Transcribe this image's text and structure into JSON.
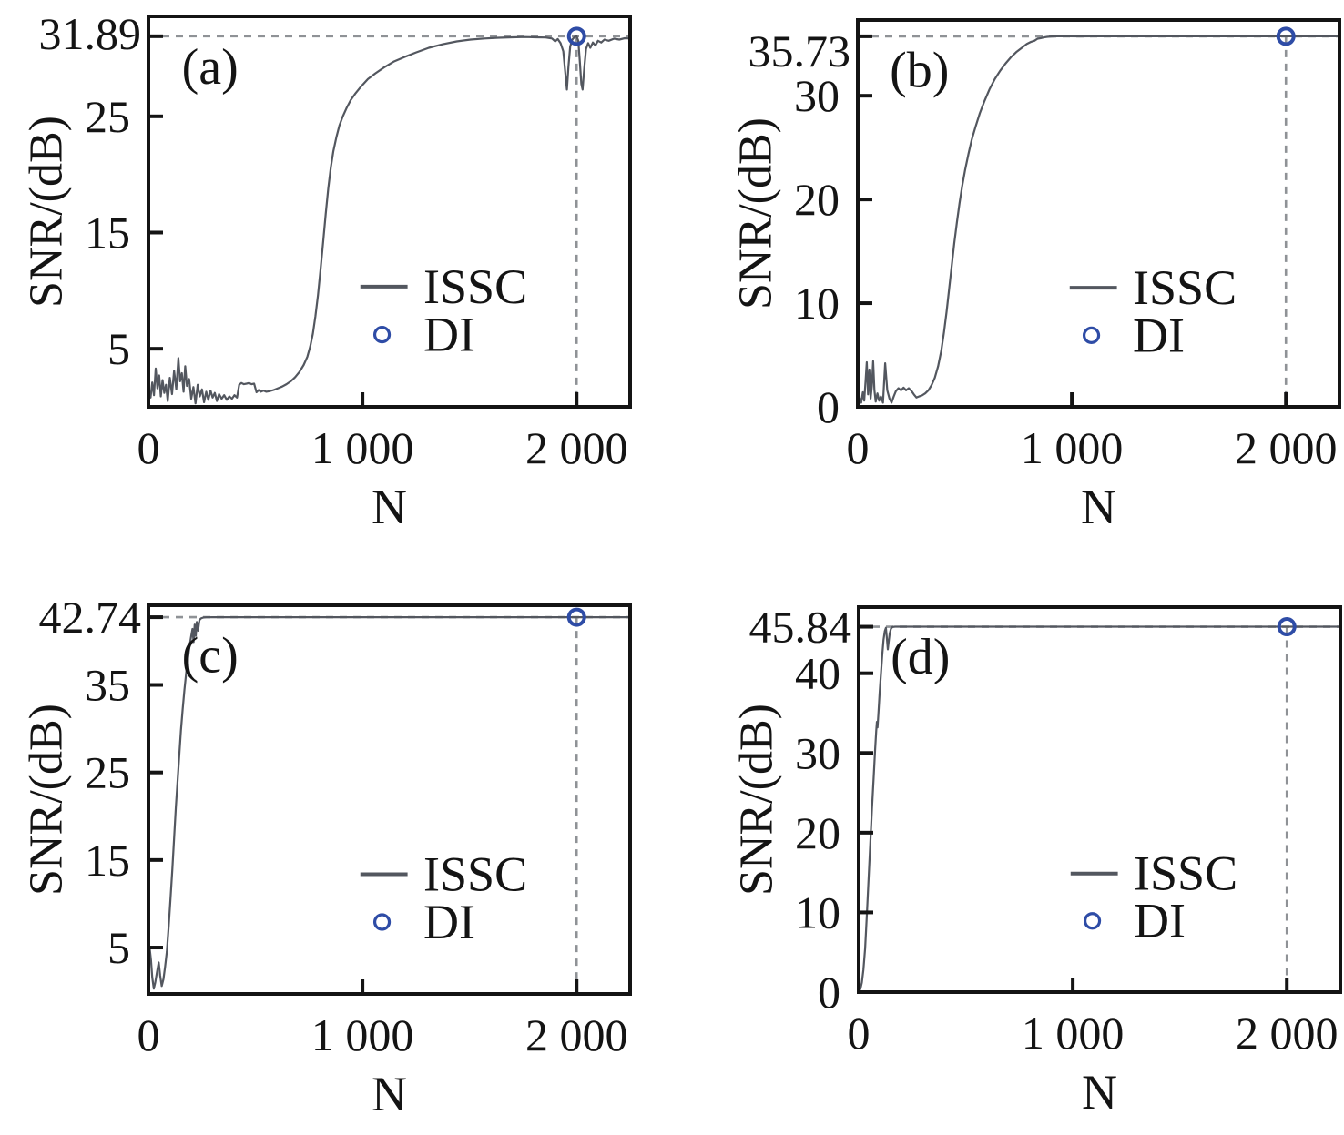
{
  "figure": {
    "title": "",
    "colors": {
      "background": "#ffffff",
      "curve": "#53575f",
      "di_marker": "#2e4ca6",
      "dashed_line": "#8f9296",
      "axis": "#141414",
      "text": "#141414"
    },
    "legend": {
      "line_label": "ISSC",
      "marker_label": "DI"
    },
    "xlabel": "N",
    "ylabel": "SNR/(dB)"
  },
  "chart_data": [
    {
      "type": "line",
      "panel_label": "(a)",
      "xlabel": "N",
      "ylabel": "SNR/(dB)",
      "xlim": [
        0,
        2250
      ],
      "ylim": [
        0,
        33.6
      ],
      "x_ticks": [
        {
          "v": 0,
          "label": "0"
        },
        {
          "v": 1000,
          "label": "1 000"
        },
        {
          "v": 2000,
          "label": "2 000"
        }
      ],
      "y_ticks": [
        {
          "v": 5,
          "label": "5"
        },
        {
          "v": 15,
          "label": "15"
        },
        {
          "v": 25,
          "label": "25"
        }
      ],
      "max_annotation": "31.89",
      "max_value": 31.89,
      "annotation_dy": -3,
      "dashed_x": 2000,
      "legend": [
        "ISSC",
        "DI"
      ],
      "di_point": [
        2000,
        31.89
      ],
      "issc_points": [
        [
          0,
          1.4
        ],
        [
          10,
          0.8
        ],
        [
          18,
          2.1
        ],
        [
          26,
          1.0
        ],
        [
          34,
          3.3
        ],
        [
          42,
          1.6
        ],
        [
          50,
          2.7
        ],
        [
          58,
          0.9
        ],
        [
          66,
          2.3
        ],
        [
          74,
          1.2
        ],
        [
          82,
          1.9
        ],
        [
          90,
          0.5
        ],
        [
          100,
          2.5
        ],
        [
          110,
          1.1
        ],
        [
          120,
          3.1
        ],
        [
          130,
          1.5
        ],
        [
          140,
          4.2
        ],
        [
          148,
          2.2
        ],
        [
          156,
          2.9
        ],
        [
          164,
          1.3
        ],
        [
          172,
          3.5
        ],
        [
          180,
          1.8
        ],
        [
          190,
          2.4
        ],
        [
          200,
          0.7
        ],
        [
          210,
          1.7
        ],
        [
          220,
          0.3
        ],
        [
          230,
          1.9
        ],
        [
          240,
          0.9
        ],
        [
          250,
          1.5
        ],
        [
          260,
          0.4
        ],
        [
          270,
          1.3
        ],
        [
          280,
          0.6
        ],
        [
          290,
          1.4
        ],
        [
          300,
          0.8
        ],
        [
          310,
          1.2
        ],
        [
          320,
          0.5
        ],
        [
          330,
          1.1
        ],
        [
          342,
          0.7
        ],
        [
          354,
          1.0
        ],
        [
          366,
          0.6
        ],
        [
          378,
          0.9
        ],
        [
          390,
          0.7
        ],
        [
          402,
          1.0
        ],
        [
          414,
          0.8
        ],
        [
          424,
          1.9
        ],
        [
          434,
          2.05
        ],
        [
          446,
          1.95
        ],
        [
          458,
          2.0
        ],
        [
          470,
          2.05
        ],
        [
          482,
          1.95
        ],
        [
          494,
          2.0
        ],
        [
          505,
          1.25
        ],
        [
          515,
          1.45
        ],
        [
          525,
          1.3
        ],
        [
          538,
          1.4
        ],
        [
          550,
          1.3
        ],
        [
          565,
          1.35
        ],
        [
          585,
          1.45
        ],
        [
          605,
          1.6
        ],
        [
          625,
          1.75
        ],
        [
          645,
          1.95
        ],
        [
          665,
          2.2
        ],
        [
          685,
          2.55
        ],
        [
          705,
          3.0
        ],
        [
          725,
          3.6
        ],
        [
          742,
          4.3
        ],
        [
          756,
          5.2
        ],
        [
          768,
          6.3
        ],
        [
          780,
          7.8
        ],
        [
          792,
          9.6
        ],
        [
          804,
          11.8
        ],
        [
          816,
          14.2
        ],
        [
          828,
          16.6
        ],
        [
          840,
          18.8
        ],
        [
          852,
          20.6
        ],
        [
          864,
          22.0
        ],
        [
          878,
          23.2
        ],
        [
          892,
          24.2
        ],
        [
          908,
          25.0
        ],
        [
          925,
          25.7
        ],
        [
          945,
          26.4
        ],
        [
          968,
          27.0
        ],
        [
          995,
          27.6
        ],
        [
          1025,
          28.2
        ],
        [
          1060,
          28.7
        ],
        [
          1100,
          29.2
        ],
        [
          1145,
          29.7
        ],
        [
          1195,
          30.1
        ],
        [
          1250,
          30.5
        ],
        [
          1310,
          30.9
        ],
        [
          1375,
          31.2
        ],
        [
          1440,
          31.45
        ],
        [
          1505,
          31.6
        ],
        [
          1570,
          31.7
        ],
        [
          1635,
          31.76
        ],
        [
          1700,
          31.8
        ],
        [
          1760,
          31.82
        ],
        [
          1810,
          31.8
        ],
        [
          1855,
          31.78
        ],
        [
          1885,
          31.7
        ],
        [
          1900,
          31.45
        ],
        [
          1912,
          31.65
        ],
        [
          1925,
          31.3
        ],
        [
          1938,
          30.6
        ],
        [
          1948,
          28.6
        ],
        [
          1955,
          27.3
        ],
        [
          1962,
          29.3
        ],
        [
          1970,
          31.0
        ],
        [
          1980,
          31.6
        ],
        [
          1990,
          31.82
        ],
        [
          2000,
          31.89
        ],
        [
          2008,
          31.5
        ],
        [
          2015,
          29.8
        ],
        [
          2022,
          27.8
        ],
        [
          2028,
          27.3
        ],
        [
          2036,
          29.2
        ],
        [
          2044,
          30.8
        ],
        [
          2054,
          31.3
        ],
        [
          2064,
          30.9
        ],
        [
          2076,
          31.35
        ],
        [
          2088,
          31.1
        ],
        [
          2100,
          31.5
        ],
        [
          2115,
          31.35
        ],
        [
          2130,
          31.6
        ],
        [
          2150,
          31.5
        ],
        [
          2175,
          31.68
        ],
        [
          2200,
          31.6
        ],
        [
          2225,
          31.72
        ],
        [
          2250,
          31.7
        ]
      ]
    },
    {
      "type": "line",
      "panel_label": "(b)",
      "xlabel": "N",
      "ylabel": "SNR/(dB)",
      "xlim": [
        0,
        2250
      ],
      "ylim": [
        0,
        37.3
      ],
      "x_ticks": [
        {
          "v": 0,
          "label": "0"
        },
        {
          "v": 1000,
          "label": "1 000"
        },
        {
          "v": 2000,
          "label": "2 000"
        }
      ],
      "y_ticks": [
        {
          "v": 0,
          "label": "0"
        },
        {
          "v": 10,
          "label": "10"
        },
        {
          "v": 20,
          "label": "20"
        },
        {
          "v": 30,
          "label": "30"
        }
      ],
      "max_annotation": "35.73",
      "max_value": 35.73,
      "annotation_dy": 16,
      "dashed_x": 2000,
      "legend": [
        "ISSC",
        "DI"
      ],
      "di_point": [
        2000,
        35.73
      ],
      "issc_points": [
        [
          0,
          0.3
        ],
        [
          8,
          0.9
        ],
        [
          16,
          0.4
        ],
        [
          24,
          1.4
        ],
        [
          30,
          0.6
        ],
        [
          36,
          2.4
        ],
        [
          42,
          4.3
        ],
        [
          48,
          1.2
        ],
        [
          54,
          3.6
        ],
        [
          60,
          0.8
        ],
        [
          66,
          2.0
        ],
        [
          72,
          4.4
        ],
        [
          78,
          1.6
        ],
        [
          84,
          0.5
        ],
        [
          92,
          1.3
        ],
        [
          100,
          0.6
        ],
        [
          108,
          1.0
        ],
        [
          118,
          0.4
        ],
        [
          128,
          4.2
        ],
        [
          138,
          1.6
        ],
        [
          148,
          0.8
        ],
        [
          158,
          0.4
        ],
        [
          168,
          1.0
        ],
        [
          178,
          1.5
        ],
        [
          190,
          1.8
        ],
        [
          202,
          1.6
        ],
        [
          214,
          1.85
        ],
        [
          226,
          1.6
        ],
        [
          238,
          1.8
        ],
        [
          250,
          1.55
        ],
        [
          262,
          1.2
        ],
        [
          274,
          0.9
        ],
        [
          286,
          1.0
        ],
        [
          300,
          1.1
        ],
        [
          315,
          1.3
        ],
        [
          330,
          1.6
        ],
        [
          345,
          2.1
        ],
        [
          360,
          2.8
        ],
        [
          375,
          3.9
        ],
        [
          390,
          5.4
        ],
        [
          403,
          7.2
        ],
        [
          415,
          9.2
        ],
        [
          427,
          11.4
        ],
        [
          439,
          13.6
        ],
        [
          451,
          15.8
        ],
        [
          463,
          17.8
        ],
        [
          475,
          19.6
        ],
        [
          488,
          21.3
        ],
        [
          502,
          22.9
        ],
        [
          517,
          24.4
        ],
        [
          533,
          25.8
        ],
        [
          550,
          27.0
        ],
        [
          570,
          28.3
        ],
        [
          592,
          29.5
        ],
        [
          615,
          30.6
        ],
        [
          640,
          31.6
        ],
        [
          665,
          32.4
        ],
        [
          690,
          33.1
        ],
        [
          715,
          33.7
        ],
        [
          740,
          34.2
        ],
        [
          765,
          34.6
        ],
        [
          790,
          35.0
        ],
        [
          810,
          35.2
        ],
        [
          825,
          35.3
        ],
        [
          840,
          35.5
        ],
        [
          855,
          35.55
        ],
        [
          870,
          35.62
        ],
        [
          885,
          35.68
        ],
        [
          905,
          35.71
        ],
        [
          930,
          35.73
        ],
        [
          980,
          35.73
        ],
        [
          1040,
          35.72
        ],
        [
          1100,
          35.73
        ],
        [
          1300,
          35.73
        ],
        [
          1600,
          35.73
        ],
        [
          1900,
          35.73
        ],
        [
          2250,
          35.73
        ]
      ]
    },
    {
      "type": "line",
      "panel_label": "(c)",
      "xlabel": "N",
      "ylabel": "SNR/(dB)",
      "xlim": [
        0,
        2250
      ],
      "ylim": [
        -0.3,
        44.1
      ],
      "x_ticks": [
        {
          "v": 0,
          "label": "0"
        },
        {
          "v": 1000,
          "label": "1 000"
        },
        {
          "v": 2000,
          "label": "2 000"
        }
      ],
      "y_ticks": [
        {
          "v": 5,
          "label": "5"
        },
        {
          "v": 15,
          "label": "15"
        },
        {
          "v": 25,
          "label": "25"
        },
        {
          "v": 35,
          "label": "35"
        }
      ],
      "max_annotation": "42.74",
      "max_value": 42.74,
      "annotation_dy": 0,
      "dashed_x": 2000,
      "legend": [
        "ISSC",
        "DI"
      ],
      "di_point": [
        2000,
        42.74
      ],
      "issc_points": [
        [
          0,
          3.2
        ],
        [
          6,
          4.9
        ],
        [
          12,
          3.6
        ],
        [
          18,
          1.6
        ],
        [
          25,
          0.3
        ],
        [
          32,
          1.0
        ],
        [
          40,
          2.2
        ],
        [
          48,
          3.3
        ],
        [
          55,
          1.8
        ],
        [
          62,
          0.6
        ],
        [
          70,
          1.4
        ],
        [
          78,
          2.8
        ],
        [
          86,
          4.5
        ],
        [
          95,
          7.5
        ],
        [
          103,
          10.5
        ],
        [
          112,
          14.0
        ],
        [
          120,
          17.5
        ],
        [
          128,
          21.0
        ],
        [
          136,
          24.0
        ],
        [
          144,
          27.0
        ],
        [
          152,
          29.8
        ],
        [
          160,
          32.2
        ],
        [
          168,
          34.4
        ],
        [
          176,
          36.3
        ],
        [
          184,
          38.0
        ],
        [
          192,
          39.4
        ],
        [
          200,
          40.6
        ],
        [
          206,
          41.4
        ],
        [
          211,
          39.9
        ],
        [
          216,
          41.9
        ],
        [
          221,
          40.6
        ],
        [
          226,
          42.2
        ],
        [
          232,
          41.2
        ],
        [
          238,
          42.4
        ],
        [
          246,
          42.6
        ],
        [
          256,
          42.7
        ],
        [
          270,
          42.73
        ],
        [
          300,
          42.74
        ],
        [
          500,
          42.74
        ],
        [
          1000,
          42.74
        ],
        [
          1500,
          42.74
        ],
        [
          2000,
          42.74
        ],
        [
          2250,
          42.74
        ]
      ]
    },
    {
      "type": "line",
      "panel_label": "(d)",
      "xlabel": "N",
      "ylabel": "SNR/(dB)",
      "xlim": [
        0,
        2250
      ],
      "ylim": [
        0,
        48.3
      ],
      "x_ticks": [
        {
          "v": 0,
          "label": "0"
        },
        {
          "v": 1000,
          "label": "1 000"
        },
        {
          "v": 2000,
          "label": "2 000"
        }
      ],
      "y_ticks": [
        {
          "v": 0,
          "label": "0"
        },
        {
          "v": 10,
          "label": "10"
        },
        {
          "v": 20,
          "label": "20"
        },
        {
          "v": 30,
          "label": "30"
        },
        {
          "v": 40,
          "label": "40"
        }
      ],
      "max_annotation": "45.84",
      "max_value": 45.84,
      "annotation_dy": 0,
      "dashed_x": 2000,
      "legend": [
        "ISSC",
        "DI"
      ],
      "di_point": [
        2000,
        45.84
      ],
      "issc_points": [
        [
          0,
          0.1
        ],
        [
          8,
          0.4
        ],
        [
          15,
          1.2
        ],
        [
          22,
          2.8
        ],
        [
          30,
          5.5
        ],
        [
          38,
          9.5
        ],
        [
          46,
          14.0
        ],
        [
          54,
          18.5
        ],
        [
          62,
          23.0
        ],
        [
          70,
          27.0
        ],
        [
          77,
          30.5
        ],
        [
          82,
          32.8
        ],
        [
          85,
          33.9
        ],
        [
          88,
          33.2
        ],
        [
          92,
          34.8
        ],
        [
          98,
          37.5
        ],
        [
          104,
          40.0
        ],
        [
          110,
          42.3
        ],
        [
          116,
          44.2
        ],
        [
          122,
          45.3
        ],
        [
          127,
          45.7
        ],
        [
          131,
          44.6
        ],
        [
          136,
          43.0
        ],
        [
          140,
          43.9
        ],
        [
          145,
          45.0
        ],
        [
          151,
          45.6
        ],
        [
          158,
          45.8
        ],
        [
          170,
          45.84
        ],
        [
          250,
          45.84
        ],
        [
          500,
          45.84
        ],
        [
          1000,
          45.84
        ],
        [
          1500,
          45.84
        ],
        [
          2000,
          45.84
        ],
        [
          2250,
          45.84
        ]
      ]
    }
  ]
}
